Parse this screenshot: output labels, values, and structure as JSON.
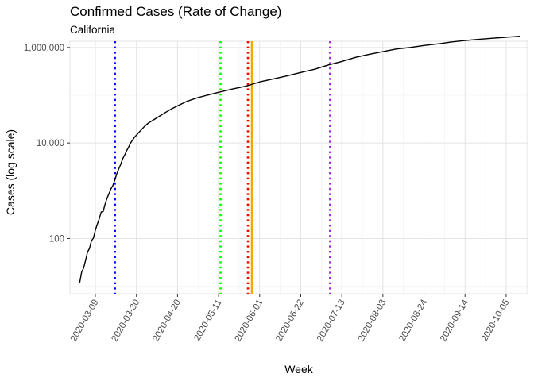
{
  "chart_data": {
    "type": "line",
    "title": "Confirmed Cases (Rate of Change)",
    "subtitle": "California",
    "xlabel": "Week",
    "ylabel": "Cases (log scale)",
    "y_scale": "log10",
    "ylim": [
      7,
      1350000
    ],
    "y_ticks": [
      {
        "value": 100,
        "label": "100"
      },
      {
        "value": 10000,
        "label": "10,000"
      },
      {
        "value": 1000000,
        "label": "1,000,000"
      }
    ],
    "xlim": [
      "2020-02-25",
      "2020-10-16"
    ],
    "x_ticks": [
      "2020-03-09",
      "2020-03-30",
      "2020-04-20",
      "2020-05-11",
      "2020-06-01",
      "2020-06-22",
      "2020-07-13",
      "2020-08-03",
      "2020-08-24",
      "2020-09-14",
      "2020-10-05"
    ],
    "grid": true,
    "series": [
      {
        "color": "#000000",
        "points": [
          [
            "2020-03-01",
            12
          ],
          [
            "2020-03-02",
            20
          ],
          [
            "2020-03-03",
            24
          ],
          [
            "2020-03-04",
            35
          ],
          [
            "2020-03-05",
            52
          ],
          [
            "2020-03-06",
            62
          ],
          [
            "2020-03-07",
            90
          ],
          [
            "2020-03-08",
            102
          ],
          [
            "2020-03-09",
            150
          ],
          [
            "2020-03-10",
            200
          ],
          [
            "2020-03-11",
            260
          ],
          [
            "2020-03-12",
            360
          ],
          [
            "2020-03-13",
            370
          ],
          [
            "2020-03-14",
            530
          ],
          [
            "2020-03-15",
            700
          ],
          [
            "2020-03-16",
            880
          ],
          [
            "2020-03-17",
            1100
          ],
          [
            "2020-03-18",
            1300
          ],
          [
            "2020-03-19",
            1700
          ],
          [
            "2020-03-20",
            2300
          ],
          [
            "2020-03-21",
            2900
          ],
          [
            "2020-03-22",
            3600
          ],
          [
            "2020-03-23",
            4700
          ],
          [
            "2020-03-24",
            5600
          ],
          [
            "2020-03-25",
            6900
          ],
          [
            "2020-03-26",
            8200
          ],
          [
            "2020-03-27",
            10000
          ],
          [
            "2020-03-28",
            11500
          ],
          [
            "2020-03-29",
            13200
          ],
          [
            "2020-03-30",
            14600
          ],
          [
            "2020-04-01",
            18000
          ],
          [
            "2020-04-03",
            22000
          ],
          [
            "2020-04-05",
            26000
          ],
          [
            "2020-04-08",
            31000
          ],
          [
            "2020-04-11",
            37000
          ],
          [
            "2020-04-14",
            44000
          ],
          [
            "2020-04-17",
            52000
          ],
          [
            "2020-04-20",
            60000
          ],
          [
            "2020-04-25",
            75000
          ],
          [
            "2020-04-30",
            88000
          ],
          [
            "2020-05-05",
            100000
          ],
          [
            "2020-05-11",
            115000
          ],
          [
            "2020-05-18",
            135000
          ],
          [
            "2020-05-25",
            155000
          ],
          [
            "2020-06-01",
            190000
          ],
          [
            "2020-06-08",
            220000
          ],
          [
            "2020-06-15",
            255000
          ],
          [
            "2020-06-22",
            300000
          ],
          [
            "2020-06-29",
            350000
          ],
          [
            "2020-07-06",
            430000
          ],
          [
            "2020-07-13",
            510000
          ],
          [
            "2020-07-20",
            620000
          ],
          [
            "2020-07-27",
            720000
          ],
          [
            "2020-08-03",
            820000
          ],
          [
            "2020-08-10",
            930000
          ],
          [
            "2020-08-17",
            1000000
          ],
          [
            "2020-08-24",
            1100000
          ],
          [
            "2020-09-01",
            1200000
          ],
          [
            "2020-09-07",
            1300000
          ],
          [
            "2020-09-14",
            1400000
          ],
          [
            "2020-09-21",
            1480000
          ],
          [
            "2020-09-28",
            1560000
          ],
          [
            "2020-10-05",
            1640000
          ],
          [
            "2020-10-12",
            1720000
          ]
        ]
      }
    ],
    "vertical_lines": [
      {
        "date": "2020-03-19",
        "color": "#0000ff",
        "style": "dotted"
      },
      {
        "date": "2020-05-12",
        "color": "#00ff00",
        "style": "dotted"
      },
      {
        "date": "2020-05-26",
        "color": "#ff0000",
        "style": "dotted"
      },
      {
        "date": "2020-05-28",
        "color": "#ffa500",
        "style": "solid"
      },
      {
        "date": "2020-07-07",
        "color": "#a020f0",
        "style": "dotted"
      }
    ]
  }
}
